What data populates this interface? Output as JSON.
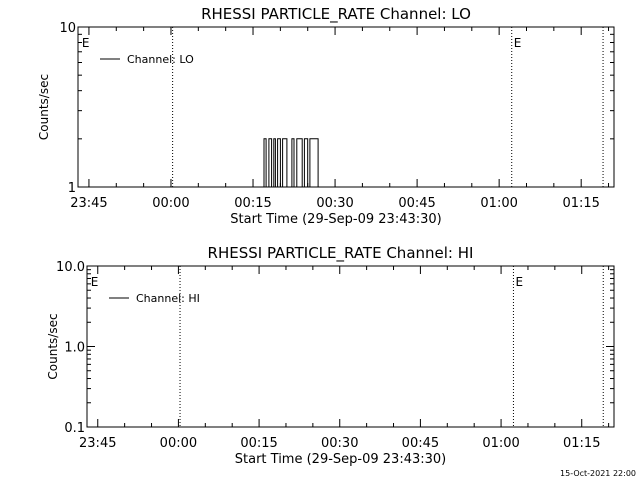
{
  "footer_timestamp": "15-Oct-2021 22:00",
  "colors": {
    "background": "#ffffff",
    "foreground": "#000000"
  },
  "chart_data": [
    {
      "type": "line",
      "title": "RHESSI PARTICLE_RATE Channel: LO",
      "xlabel": "Start Time (29-Sep-09 23:43:30)",
      "ylabel": "Counts/sec",
      "y_scale": "log",
      "ylim": [
        1,
        10
      ],
      "y_ticks": [
        {
          "value": 1,
          "label": "1"
        },
        {
          "value": 10,
          "label": "10"
        }
      ],
      "xlim_minutes": [
        -17,
        81
      ],
      "x_ticks": [
        {
          "minutes": -15,
          "label": "23:45"
        },
        {
          "minutes": 0,
          "label": "00:00"
        },
        {
          "minutes": 15,
          "label": "00:15"
        },
        {
          "minutes": 30,
          "label": "00:30"
        },
        {
          "minutes": 45,
          "label": "00:45"
        },
        {
          "minutes": 60,
          "label": "01:00"
        },
        {
          "minutes": 75,
          "label": "01:15"
        }
      ],
      "vlines_minutes": [
        0.3,
        62.3,
        79.0
      ],
      "event_markers": [
        {
          "minutes": -16.3,
          "label": "E"
        },
        {
          "minutes": 62.3,
          "label": "E"
        }
      ],
      "legend": {
        "placement": "top-left",
        "entries": [
          "Channel: LO"
        ]
      },
      "series": [
        {
          "name": "Channel: LO",
          "x": [
            17.0,
            17.0,
            17.4,
            17.4,
            17.9,
            17.9,
            18.4,
            18.4,
            18.8,
            18.8,
            19.1,
            19.1,
            19.5,
            19.5,
            20.0,
            20.0,
            20.4,
            20.4,
            21.2,
            21.2,
            22.1,
            22.1,
            22.5,
            22.5,
            23.0,
            23.0,
            24.0,
            24.0,
            24.4,
            24.4,
            25.0,
            25.0,
            25.4,
            25.4,
            26.9,
            26.9,
            27.3,
            27.3
          ],
          "y": [
            1,
            2,
            2,
            1,
            1,
            2,
            2,
            1,
            1,
            2,
            2,
            1,
            1,
            2,
            2,
            1,
            1,
            2,
            2,
            1,
            1,
            2,
            2,
            1,
            1,
            2,
            2,
            1,
            1,
            2,
            2,
            1,
            1,
            2,
            2,
            1,
            1,
            1
          ]
        }
      ]
    },
    {
      "type": "line",
      "title": "RHESSI PARTICLE_RATE Channel: HI",
      "xlabel": "Start Time (29-Sep-09 23:43:30)",
      "ylabel": "Counts/sec",
      "y_scale": "log",
      "ylim": [
        0.1,
        10
      ],
      "y_ticks": [
        {
          "value": 0.1,
          "label": "0.1"
        },
        {
          "value": 1,
          "label": "1.0"
        },
        {
          "value": 10,
          "label": "10.0"
        }
      ],
      "xlim_minutes": [
        -17,
        81
      ],
      "x_ticks": [
        {
          "minutes": -15,
          "label": "23:45"
        },
        {
          "minutes": 0,
          "label": "00:00"
        },
        {
          "minutes": 15,
          "label": "00:15"
        },
        {
          "minutes": 30,
          "label": "00:30"
        },
        {
          "minutes": 45,
          "label": "00:45"
        },
        {
          "minutes": 60,
          "label": "01:00"
        },
        {
          "minutes": 75,
          "label": "01:15"
        }
      ],
      "vlines_minutes": [
        0.3,
        62.3,
        79.0
      ],
      "event_markers": [
        {
          "minutes": -16.3,
          "label": "E"
        },
        {
          "minutes": 62.3,
          "label": "E"
        }
      ],
      "legend": {
        "placement": "top-left",
        "entries": [
          "Channel: HI"
        ]
      },
      "series": [
        {
          "name": "Channel: HI",
          "x": [],
          "y": []
        }
      ]
    }
  ]
}
